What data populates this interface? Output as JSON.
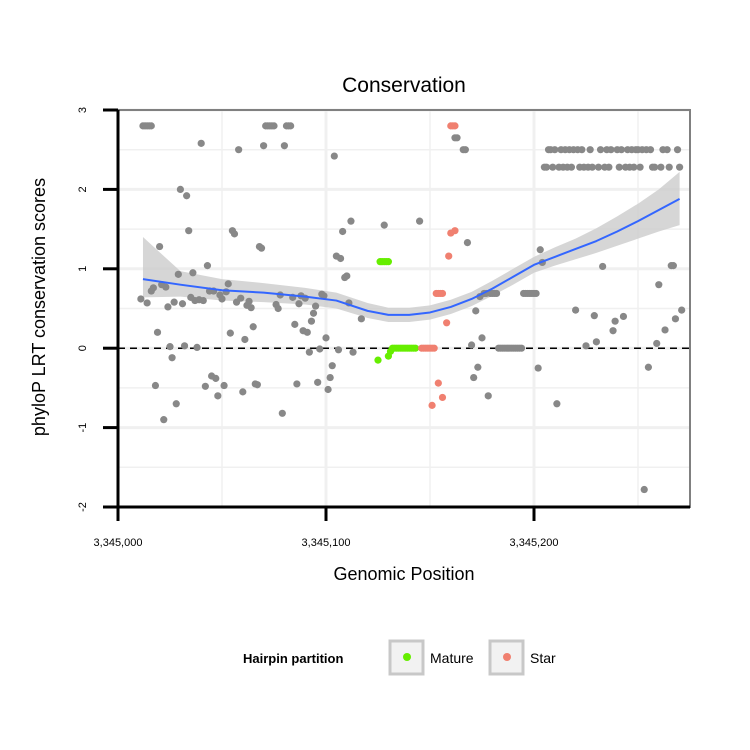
{
  "chart_data": {
    "type": "scatter",
    "title": "Conservation",
    "xlabel": "Genomic Position",
    "ylabel": "phyloP LRT conservation scores",
    "xlim": [
      3345000,
      3345275
    ],
    "ylim": [
      -2,
      3
    ],
    "x_ticks": [
      3345000,
      3345100,
      3345200
    ],
    "x_tick_labels": [
      "3,345,000",
      "3,345,100",
      "3,345,200"
    ],
    "y_ticks": [
      -2,
      -1,
      0,
      1,
      2,
      3
    ],
    "y_tick_labels": [
      "-2",
      "-1",
      "0",
      "1",
      "2",
      "3"
    ],
    "grid": true,
    "reference_line": {
      "y": 0,
      "style": "dashed"
    },
    "colors": {
      "background": "#ffffff",
      "grid": "#f0f0f0",
      "panel_border": "#808080",
      "other": "#888888",
      "mature": "#66ee00",
      "star": "#f08070",
      "smooth_line": "#3366ff",
      "ribbon": "#cccccc"
    },
    "legend": {
      "title": "Hairpin partition",
      "position": "bottom",
      "entries": [
        {
          "label": "Mature",
          "color": "#66ee00"
        },
        {
          "label": "Star",
          "color": "#f08070"
        }
      ]
    },
    "series": [
      {
        "key": "other",
        "points": [
          [
            3345012,
            2.8
          ],
          [
            3345013,
            2.8
          ],
          [
            3345014,
            2.8
          ],
          [
            3345015,
            2.8
          ],
          [
            3345016,
            2.8
          ],
          [
            3345011,
            0.62
          ],
          [
            3345014,
            0.57
          ],
          [
            3345016,
            0.72
          ],
          [
            3345017,
            0.76
          ],
          [
            3345018,
            -0.47
          ],
          [
            3345019,
            0.2
          ],
          [
            3345020,
            1.28
          ],
          [
            3345021,
            0.8
          ],
          [
            3345022,
            -0.9
          ],
          [
            3345023,
            0.77
          ],
          [
            3345024,
            0.52
          ],
          [
            3345025,
            0.02
          ],
          [
            3345026,
            -0.12
          ],
          [
            3345027,
            0.58
          ],
          [
            3345028,
            -0.7
          ],
          [
            3345029,
            0.93
          ],
          [
            3345030,
            2.0
          ],
          [
            3345031,
            0.56
          ],
          [
            3345032,
            0.03
          ],
          [
            3345033,
            1.92
          ],
          [
            3345034,
            1.48
          ],
          [
            3345035,
            0.64
          ],
          [
            3345036,
            0.95
          ],
          [
            3345037,
            0.6
          ],
          [
            3345038,
            0.01
          ],
          [
            3345039,
            0.61
          ],
          [
            3345040,
            2.58
          ],
          [
            3345041,
            0.6
          ],
          [
            3345042,
            -0.48
          ],
          [
            3345043,
            1.04
          ],
          [
            3345044,
            0.72
          ],
          [
            3345045,
            -0.35
          ],
          [
            3345046,
            0.72
          ],
          [
            3345047,
            -0.38
          ],
          [
            3345048,
            -0.6
          ],
          [
            3345049,
            0.67
          ],
          [
            3345050,
            0.62
          ],
          [
            3345051,
            -0.47
          ],
          [
            3345052,
            0.71
          ],
          [
            3345053,
            0.81
          ],
          [
            3345054,
            0.19
          ],
          [
            3345055,
            1.48
          ],
          [
            3345056,
            1.44
          ],
          [
            3345057,
            0.58
          ],
          [
            3345058,
            2.5
          ],
          [
            3345059,
            0.63
          ],
          [
            3345060,
            -0.55
          ],
          [
            3345061,
            0.11
          ],
          [
            3345062,
            0.54
          ],
          [
            3345063,
            0.59
          ],
          [
            3345064,
            0.51
          ],
          [
            3345065,
            0.27
          ],
          [
            3345066,
            -0.45
          ],
          [
            3345067,
            -0.46
          ],
          [
            3345068,
            1.28
          ],
          [
            3345069,
            1.26
          ],
          [
            3345070,
            2.55
          ],
          [
            3345071,
            2.8
          ],
          [
            3345072,
            2.8
          ],
          [
            3345073,
            2.8
          ],
          [
            3345074,
            2.8
          ],
          [
            3345075,
            2.8
          ],
          [
            3345076,
            0.55
          ],
          [
            3345077,
            0.5
          ],
          [
            3345078,
            0.67
          ],
          [
            3345079,
            -0.82
          ],
          [
            3345080,
            2.55
          ],
          [
            3345081,
            2.8
          ],
          [
            3345082,
            2.8
          ],
          [
            3345083,
            2.8
          ],
          [
            3345084,
            0.64
          ],
          [
            3345085,
            0.3
          ],
          [
            3345086,
            -0.45
          ],
          [
            3345087,
            0.56
          ],
          [
            3345088,
            0.66
          ],
          [
            3345089,
            0.22
          ],
          [
            3345090,
            0.63
          ],
          [
            3345091,
            0.2
          ],
          [
            3345092,
            -0.05
          ],
          [
            3345093,
            0.34
          ],
          [
            3345094,
            0.44
          ],
          [
            3345095,
            0.53
          ],
          [
            3345096,
            -0.43
          ],
          [
            3345097,
            -0.01
          ],
          [
            3345098,
            0.68
          ],
          [
            3345099,
            0.66
          ],
          [
            3345100,
            0.13
          ],
          [
            3345101,
            -0.52
          ],
          [
            3345102,
            -0.37
          ],
          [
            3345103,
            -0.22
          ],
          [
            3345104,
            2.42
          ],
          [
            3345105,
            1.16
          ],
          [
            3345106,
            -0.02
          ],
          [
            3345107,
            1.13
          ],
          [
            3345108,
            1.47
          ],
          [
            3345109,
            0.89
          ],
          [
            3345110,
            0.91
          ],
          [
            3345111,
            0.57
          ],
          [
            3345112,
            1.6
          ],
          [
            3345113,
            -0.05
          ],
          [
            3345117,
            0.37
          ],
          [
            3345128,
            1.55
          ],
          [
            3345145,
            1.6
          ],
          [
            3345162,
            2.65
          ],
          [
            3345163,
            2.65
          ],
          [
            3345166,
            2.5
          ],
          [
            3345167,
            2.5
          ],
          [
            3345168,
            1.33
          ],
          [
            3345170,
            0.04
          ],
          [
            3345171,
            -0.37
          ],
          [
            3345172,
            0.47
          ],
          [
            3345173,
            -0.24
          ],
          [
            3345174,
            0.65
          ],
          [
            3345175,
            0.13
          ],
          [
            3345176,
            0.69
          ],
          [
            3345177,
            0.69
          ],
          [
            3345178,
            -0.6
          ],
          [
            3345179,
            0.69
          ],
          [
            3345180,
            0.69
          ],
          [
            3345181,
            0.69
          ],
          [
            3345182,
            0.69
          ],
          [
            3345183,
            0.0
          ],
          [
            3345184,
            0.0
          ],
          [
            3345185,
            0.0
          ],
          [
            3345186,
            0.0
          ],
          [
            3345187,
            0.0
          ],
          [
            3345188,
            0.0
          ],
          [
            3345189,
            0.0
          ],
          [
            3345190,
            0.0
          ],
          [
            3345191,
            0.0
          ],
          [
            3345192,
            0.0
          ],
          [
            3345193,
            0.0
          ],
          [
            3345194,
            0.0
          ],
          [
            3345195,
            0.69
          ],
          [
            3345196,
            0.69
          ],
          [
            3345197,
            0.69
          ],
          [
            3345198,
            0.69
          ],
          [
            3345199,
            0.69
          ],
          [
            3345200,
            0.69
          ],
          [
            3345201,
            0.69
          ],
          [
            3345202,
            -0.25
          ],
          [
            3345203,
            1.24
          ],
          [
            3345204,
            1.08
          ],
          [
            3345205,
            2.28
          ],
          [
            3345206,
            2.28
          ],
          [
            3345207,
            2.5
          ],
          [
            3345208,
            2.5
          ],
          [
            3345209,
            2.28
          ],
          [
            3345210,
            2.5
          ],
          [
            3345211,
            -0.7
          ],
          [
            3345212,
            2.28
          ],
          [
            3345213,
            2.5
          ],
          [
            3345214,
            2.28
          ],
          [
            3345215,
            2.5
          ],
          [
            3345216,
            2.28
          ],
          [
            3345217,
            2.5
          ],
          [
            3345218,
            2.28
          ],
          [
            3345219,
            2.5
          ],
          [
            3345220,
            0.48
          ],
          [
            3345221,
            2.5
          ],
          [
            3345222,
            2.28
          ],
          [
            3345223,
            2.5
          ],
          [
            3345224,
            2.28
          ],
          [
            3345225,
            0.03
          ],
          [
            3345226,
            2.28
          ],
          [
            3345227,
            2.5
          ],
          [
            3345228,
            2.28
          ],
          [
            3345229,
            0.41
          ],
          [
            3345230,
            0.08
          ],
          [
            3345231,
            2.28
          ],
          [
            3345232,
            2.5
          ],
          [
            3345233,
            1.03
          ],
          [
            3345234,
            2.28
          ],
          [
            3345235,
            2.5
          ],
          [
            3345236,
            2.28
          ],
          [
            3345237,
            2.5
          ],
          [
            3345238,
            0.22
          ],
          [
            3345239,
            0.34
          ],
          [
            3345240,
            2.5
          ],
          [
            3345241,
            2.28
          ],
          [
            3345242,
            2.5
          ],
          [
            3345243,
            0.4
          ],
          [
            3345244,
            2.28
          ],
          [
            3345245,
            2.5
          ],
          [
            3345246,
            2.28
          ],
          [
            3345247,
            2.5
          ],
          [
            3345248,
            2.28
          ],
          [
            3345249,
            2.5
          ],
          [
            3345250,
            2.5
          ],
          [
            3345251,
            2.28
          ],
          [
            3345252,
            2.5
          ],
          [
            3345253,
            -1.78
          ],
          [
            3345254,
            2.5
          ],
          [
            3345255,
            -0.24
          ],
          [
            3345256,
            2.5
          ],
          [
            3345257,
            2.28
          ],
          [
            3345258,
            2.28
          ],
          [
            3345259,
            0.06
          ],
          [
            3345260,
            0.8
          ],
          [
            3345261,
            2.28
          ],
          [
            3345262,
            2.5
          ],
          [
            3345263,
            0.23
          ],
          [
            3345264,
            2.5
          ],
          [
            3345265,
            2.28
          ],
          [
            3345266,
            1.04
          ],
          [
            3345267,
            1.04
          ],
          [
            3345268,
            0.37
          ],
          [
            3345269,
            2.5
          ],
          [
            3345270,
            2.28
          ],
          [
            3345271,
            0.48
          ]
        ]
      },
      {
        "key": "mature",
        "name": "Mature",
        "points": [
          [
            3345126,
            1.09
          ],
          [
            3345127,
            1.09
          ],
          [
            3345128,
            1.09
          ],
          [
            3345129,
            1.09
          ],
          [
            3345130,
            1.09
          ],
          [
            3345125,
            -0.15
          ],
          [
            3345130,
            -0.1
          ],
          [
            3345131,
            -0.04
          ],
          [
            3345132,
            0.0
          ],
          [
            3345133,
            0.0
          ],
          [
            3345134,
            0.0
          ],
          [
            3345135,
            0.0
          ],
          [
            3345136,
            0.0
          ],
          [
            3345137,
            0.0
          ],
          [
            3345138,
            0.0
          ],
          [
            3345139,
            0.0
          ],
          [
            3345140,
            0.0
          ],
          [
            3345141,
            0.0
          ],
          [
            3345142,
            0.0
          ],
          [
            3345143,
            0.0
          ]
        ]
      },
      {
        "key": "star",
        "name": "Star",
        "points": [
          [
            3345146,
            0.0
          ],
          [
            3345147,
            0.0
          ],
          [
            3345148,
            0.0
          ],
          [
            3345149,
            0.0
          ],
          [
            3345150,
            0.0
          ],
          [
            3345151,
            0.0
          ],
          [
            3345152,
            0.0
          ],
          [
            3345151,
            -0.72
          ],
          [
            3345153,
            0.69
          ],
          [
            3345154,
            0.69
          ],
          [
            3345155,
            0.69
          ],
          [
            3345156,
            0.69
          ],
          [
            3345154,
            -0.44
          ],
          [
            3345156,
            -0.62
          ],
          [
            3345158,
            0.32
          ],
          [
            3345159,
            1.16
          ],
          [
            3345160,
            1.45
          ],
          [
            3345162,
            1.48
          ],
          [
            3345160,
            2.8
          ],
          [
            3345161,
            2.8
          ],
          [
            3345162,
            2.8
          ]
        ]
      }
    ],
    "smooth": {
      "method": "loess",
      "x": [
        3345012,
        3345030,
        3345050,
        3345070,
        3345090,
        3345105,
        3345120,
        3345130,
        3345140,
        3345150,
        3345160,
        3345170,
        3345180,
        3345190,
        3345200,
        3345210,
        3345220,
        3345230,
        3345240,
        3345250,
        3345260,
        3345270
      ],
      "y": [
        0.87,
        0.8,
        0.73,
        0.7,
        0.65,
        0.6,
        0.47,
        0.42,
        0.42,
        0.45,
        0.52,
        0.62,
        0.75,
        0.9,
        1.05,
        1.15,
        1.25,
        1.35,
        1.47,
        1.6,
        1.74,
        1.88
      ],
      "lower": [
        0.64,
        0.65,
        0.6,
        0.58,
        0.55,
        0.5,
        0.38,
        0.33,
        0.33,
        0.36,
        0.43,
        0.53,
        0.66,
        0.8,
        0.95,
        1.04,
        1.12,
        1.2,
        1.29,
        1.38,
        1.47,
        1.55
      ],
      "upper": [
        1.4,
        0.97,
        0.87,
        0.82,
        0.76,
        0.7,
        0.57,
        0.51,
        0.51,
        0.54,
        0.61,
        0.71,
        0.85,
        1.0,
        1.15,
        1.27,
        1.38,
        1.51,
        1.66,
        1.82,
        2.0,
        2.22
      ]
    }
  }
}
